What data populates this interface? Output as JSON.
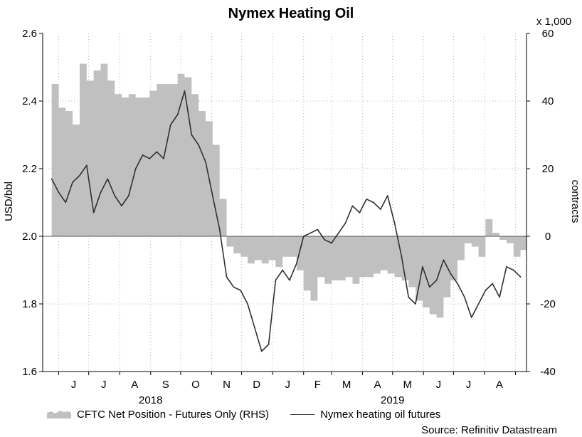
{
  "chart_data": {
    "type": "area",
    "title": "Nymex Heating Oil",
    "ylabel_left": "USD/bbl",
    "ylabel_right": "contracts",
    "right_axis_unit": "x 1,000",
    "ylim_left": [
      1.6,
      2.6
    ],
    "ylim_right": [
      -40,
      60
    ],
    "yticks_left": [
      "1.6",
      "1.8",
      "2.0",
      "2.2",
      "2.4",
      "2.6"
    ],
    "yticks_right": [
      "-40",
      "-20",
      "0",
      "20",
      "40",
      "60"
    ],
    "months": [
      "J",
      "J",
      "A",
      "S",
      "O",
      "N",
      "D",
      "J",
      "F",
      "M",
      "A",
      "M",
      "J",
      "J",
      "A"
    ],
    "years": [
      "2018",
      "2019"
    ],
    "grid": true,
    "legend_position": "bottom",
    "colors": {
      "net_position": "#c0c0c0",
      "futures": "#303030"
    },
    "series": [
      {
        "name": "CFTC Net Position - Futures Only (RHS)",
        "axis": "right",
        "render": "area",
        "x": [
          "2018-05-25",
          "2018-06-01",
          "2018-06-08",
          "2018-06-15",
          "2018-06-22",
          "2018-06-29",
          "2018-07-06",
          "2018-07-13",
          "2018-07-20",
          "2018-07-27",
          "2018-08-03",
          "2018-08-10",
          "2018-08-17",
          "2018-08-24",
          "2018-08-31",
          "2018-09-07",
          "2018-09-14",
          "2018-09-21",
          "2018-09-28",
          "2018-10-05",
          "2018-10-12",
          "2018-10-19",
          "2018-10-26",
          "2018-11-02",
          "2018-11-09",
          "2018-11-16",
          "2018-11-23",
          "2018-11-30",
          "2018-12-07",
          "2018-12-14",
          "2018-12-21",
          "2018-12-28",
          "2019-01-04",
          "2019-01-11",
          "2019-01-18",
          "2019-01-25",
          "2019-02-01",
          "2019-02-08",
          "2019-02-15",
          "2019-02-22",
          "2019-03-01",
          "2019-03-08",
          "2019-03-15",
          "2019-03-22",
          "2019-03-29",
          "2019-04-05",
          "2019-04-12",
          "2019-04-19",
          "2019-04-26",
          "2019-05-03",
          "2019-05-10",
          "2019-05-17",
          "2019-05-24",
          "2019-05-31",
          "2019-06-07",
          "2019-06-14",
          "2019-06-21",
          "2019-06-28",
          "2019-07-05",
          "2019-07-12",
          "2019-07-19",
          "2019-07-26",
          "2019-08-02",
          "2019-08-09",
          "2019-08-16",
          "2019-08-23",
          "2019-08-30",
          "2019-09-06"
        ],
        "values": [
          45,
          38,
          37,
          33,
          51,
          46,
          49,
          51,
          46,
          42,
          41,
          42,
          41,
          41,
          43,
          45,
          45,
          45,
          48,
          47,
          42,
          37,
          34,
          27,
          11,
          -3,
          -5,
          -6,
          -8,
          -7,
          -8,
          -7,
          -9,
          -6,
          -6,
          -10,
          -16,
          -19,
          -12,
          -14,
          -13,
          -13,
          -12,
          -14,
          -12,
          -12,
          -11,
          -10,
          -11,
          -12,
          -13,
          -15,
          -19,
          -21,
          -23,
          -24,
          -18,
          -13,
          -7,
          -2,
          -3,
          -6,
          5,
          1,
          -1,
          -2,
          -6,
          -4
        ]
      },
      {
        "name": "Nymex heating oil futures",
        "axis": "left",
        "render": "line",
        "x": [
          "2018-05-25",
          "2018-06-01",
          "2018-06-08",
          "2018-06-15",
          "2018-06-22",
          "2018-06-29",
          "2018-07-06",
          "2018-07-13",
          "2018-07-20",
          "2018-07-27",
          "2018-08-03",
          "2018-08-10",
          "2018-08-17",
          "2018-08-24",
          "2018-08-31",
          "2018-09-07",
          "2018-09-14",
          "2018-09-21",
          "2018-09-28",
          "2018-10-05",
          "2018-10-12",
          "2018-10-19",
          "2018-10-26",
          "2018-11-02",
          "2018-11-09",
          "2018-11-16",
          "2018-11-23",
          "2018-11-30",
          "2018-12-07",
          "2018-12-14",
          "2018-12-21",
          "2018-12-28",
          "2019-01-04",
          "2019-01-11",
          "2019-01-18",
          "2019-01-25",
          "2019-02-01",
          "2019-02-08",
          "2019-02-15",
          "2019-02-22",
          "2019-03-01",
          "2019-03-08",
          "2019-03-15",
          "2019-03-22",
          "2019-03-29",
          "2019-04-05",
          "2019-04-12",
          "2019-04-19",
          "2019-04-26",
          "2019-05-03",
          "2019-05-10",
          "2019-05-17",
          "2019-05-24",
          "2019-05-31",
          "2019-06-07",
          "2019-06-14",
          "2019-06-21",
          "2019-06-28",
          "2019-07-05",
          "2019-07-12",
          "2019-07-19",
          "2019-07-26",
          "2019-08-02",
          "2019-08-09",
          "2019-08-16",
          "2019-08-23",
          "2019-08-30",
          "2019-09-06"
        ],
        "values": [
          2.17,
          2.13,
          2.1,
          2.16,
          2.18,
          2.21,
          2.07,
          2.13,
          2.17,
          2.12,
          2.09,
          2.12,
          2.2,
          2.24,
          2.23,
          2.25,
          2.23,
          2.33,
          2.36,
          2.43,
          2.3,
          2.27,
          2.22,
          2.12,
          2.02,
          1.88,
          1.85,
          1.84,
          1.8,
          1.73,
          1.66,
          1.68,
          1.87,
          1.9,
          1.87,
          1.92,
          2.0,
          2.01,
          2.02,
          1.99,
          1.98,
          2.01,
          2.04,
          2.09,
          2.07,
          2.11,
          2.1,
          2.08,
          2.12,
          2.04,
          1.94,
          1.82,
          1.8,
          1.91,
          1.85,
          1.87,
          1.93,
          1.89,
          1.86,
          1.82,
          1.76,
          1.8,
          1.84,
          1.86,
          1.82,
          1.91,
          1.9,
          1.88
        ]
      }
    ]
  },
  "source": "Source: Refinitiv Datastream"
}
